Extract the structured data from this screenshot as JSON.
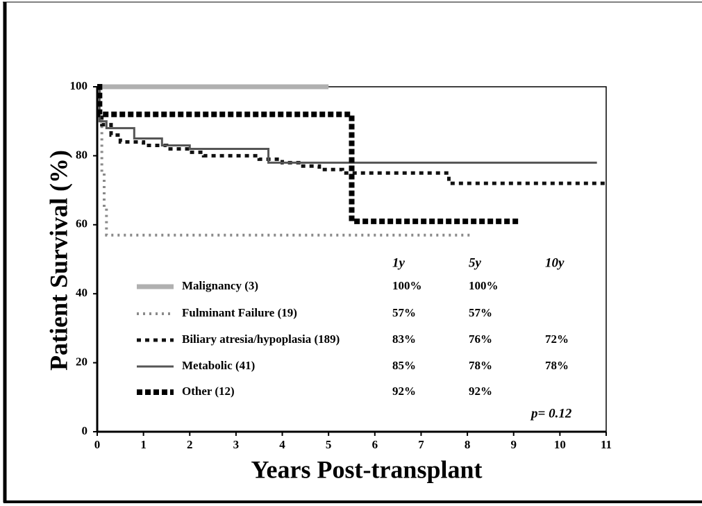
{
  "chart_data": {
    "type": "line",
    "drawstyle": "steps-post",
    "x_label": "Years Post-transplant",
    "y_label": "Patient Survival (%)",
    "xlim": [
      0,
      11
    ],
    "ylim": [
      0,
      100
    ],
    "xticks": [
      0,
      1,
      2,
      3,
      4,
      5,
      6,
      7,
      8,
      9,
      10,
      11
    ],
    "yticks": [
      0,
      20,
      40,
      60,
      80,
      100
    ],
    "series": [
      {
        "name": "Malignancy (3)",
        "color": "#b0b0b0",
        "x": [
          0,
          5
        ],
        "values": [
          100,
          100
        ]
      },
      {
        "name": "Fulminant Failure (19)",
        "color": "#8a8a8a",
        "x": [
          0,
          0.05,
          0.1,
          0.15,
          0.2,
          8.1
        ],
        "values": [
          100,
          90,
          75,
          65,
          57,
          57
        ]
      },
      {
        "name": "Biliary atresia/hypoplasia (189)",
        "color": "#111111",
        "x": [
          0,
          0.05,
          0.1,
          0.3,
          0.5,
          1,
          1.5,
          2,
          2.3,
          3.5,
          4,
          4.4,
          4.8,
          5.3,
          7.6,
          11
        ],
        "values": [
          100,
          92,
          89,
          86,
          84,
          83,
          82,
          81,
          80,
          79,
          78,
          77,
          76,
          75,
          72,
          72
        ]
      },
      {
        "name": "Metabolic (41)",
        "color": "#555555",
        "x": [
          0,
          0.05,
          0.2,
          0.8,
          1.4,
          2,
          3.7,
          10.8
        ],
        "values": [
          100,
          90,
          88,
          85,
          83,
          82,
          78,
          78
        ]
      },
      {
        "name": "Other (12)",
        "color": "#000000",
        "x": [
          0,
          0.05,
          5.5,
          9.1
        ],
        "values": [
          100,
          92,
          61,
          61
        ]
      }
    ],
    "summary": {
      "columns": [
        "1y",
        "5y",
        "10y"
      ],
      "values": [
        [
          100,
          100,
          null
        ],
        [
          57,
          57,
          null
        ],
        [
          83,
          76,
          72
        ],
        [
          85,
          78,
          78
        ],
        [
          92,
          92,
          null
        ]
      ],
      "value_labels": [
        [
          "100%",
          "100%",
          null
        ],
        [
          "57%",
          "57%",
          null
        ],
        [
          "83%",
          "76%",
          "72%"
        ],
        [
          "85%",
          "78%",
          "78%"
        ],
        [
          "92%",
          "92%",
          null
        ]
      ]
    },
    "annotation": "p= 0.12"
  }
}
